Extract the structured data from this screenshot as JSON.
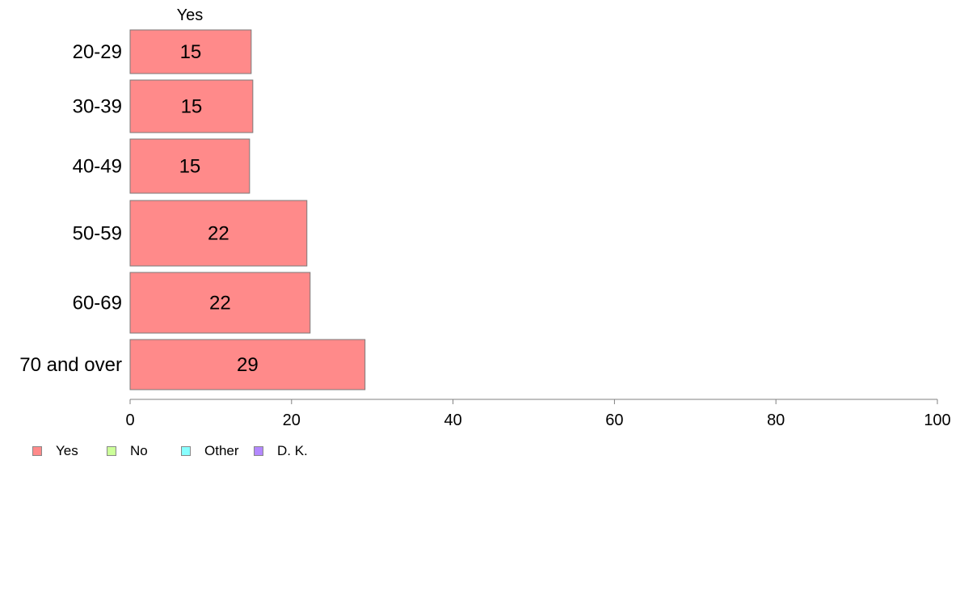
{
  "chart_data": {
    "type": "bar",
    "orientation": "horizontal",
    "series_header": "Yes",
    "categories": [
      "20-29",
      "30-39",
      "40-49",
      "50-59",
      "60-69",
      "70 and over"
    ],
    "series": [
      {
        "name": "Yes",
        "color": "#FF8A8A",
        "values": [
          15,
          15.2,
          14.8,
          21.9,
          22.3,
          29.1
        ],
        "labels": [
          "15",
          "15",
          "15",
          "22",
          "22",
          "29"
        ]
      }
    ],
    "xlim": [
      0,
      100
    ],
    "xticks": [
      0,
      20,
      40,
      60,
      80,
      100
    ],
    "grid": false,
    "legend_position": "bottom-left",
    "legend": [
      {
        "label": "Yes",
        "color": "#FF8A8A"
      },
      {
        "label": "No",
        "color": "#CCFF99"
      },
      {
        "label": "Other",
        "color": "#88FFFF"
      },
      {
        "label": "D. K.",
        "color": "#B388FF"
      }
    ]
  }
}
